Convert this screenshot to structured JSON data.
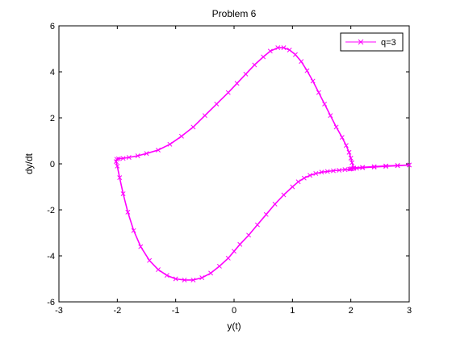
{
  "chart_data": {
    "type": "line",
    "title": "Problem 6",
    "xlabel": "y(t)",
    "ylabel": "dy/dt",
    "xlim": [
      -3,
      3
    ],
    "ylim": [
      -6,
      6
    ],
    "xticks": [
      -3,
      -2,
      -1,
      0,
      1,
      2,
      3
    ],
    "yticks": [
      -6,
      -4,
      -2,
      0,
      2,
      4,
      6
    ],
    "grid": false,
    "legend_position": "top-right",
    "series": [
      {
        "name": "q=3",
        "color": "#ff00ff",
        "marker": "x",
        "x": [
          3.0,
          2.8,
          2.6,
          2.4,
          2.2,
          2.1,
          2.05,
          2.02,
          2.0,
          1.98,
          1.9,
          1.8,
          1.7,
          1.6,
          1.5,
          1.4,
          1.3,
          1.2,
          1.1,
          1.0,
          0.85,
          0.7,
          0.55,
          0.4,
          0.25,
          0.1,
          0.0,
          -0.1,
          -0.25,
          -0.4,
          -0.55,
          -0.7,
          -0.85,
          -1.0,
          -1.15,
          -1.3,
          -1.45,
          -1.6,
          -1.72,
          -1.82,
          -1.9,
          -1.96,
          -2.0,
          -2.02,
          -2.01,
          -1.98,
          -1.9,
          -1.8,
          -1.65,
          -1.5,
          -1.3,
          -1.1,
          -0.9,
          -0.7,
          -0.5,
          -0.3,
          -0.1,
          0.05,
          0.2,
          0.35,
          0.5,
          0.62,
          0.75,
          0.85,
          0.95,
          1.05,
          1.15,
          1.25,
          1.35,
          1.45,
          1.55,
          1.65,
          1.75,
          1.85,
          1.92,
          1.97,
          2.0,
          2.02,
          2.05,
          2.2,
          2.4,
          2.6,
          2.8,
          3.0
        ],
        "y": [
          -0.05,
          -0.08,
          -0.11,
          -0.14,
          -0.17,
          -0.19,
          -0.2,
          -0.21,
          -0.22,
          -0.23,
          -0.25,
          -0.28,
          -0.3,
          -0.33,
          -0.36,
          -0.42,
          -0.5,
          -0.62,
          -0.78,
          -1.0,
          -1.35,
          -1.75,
          -2.2,
          -2.65,
          -3.1,
          -3.5,
          -3.8,
          -4.1,
          -4.45,
          -4.75,
          -4.95,
          -5.05,
          -5.05,
          -5.0,
          -4.85,
          -4.6,
          -4.2,
          -3.6,
          -2.9,
          -2.1,
          -1.3,
          -0.6,
          -0.1,
          0.1,
          0.2,
          0.22,
          0.24,
          0.28,
          0.35,
          0.45,
          0.6,
          0.85,
          1.2,
          1.6,
          2.1,
          2.6,
          3.1,
          3.5,
          3.9,
          4.3,
          4.65,
          4.9,
          5.05,
          5.05,
          4.95,
          4.75,
          4.45,
          4.05,
          3.6,
          3.1,
          2.6,
          2.1,
          1.6,
          1.15,
          0.8,
          0.5,
          0.25,
          0.05,
          -0.18,
          -0.15,
          -0.12,
          -0.09,
          -0.07,
          -0.05
        ]
      }
    ]
  }
}
